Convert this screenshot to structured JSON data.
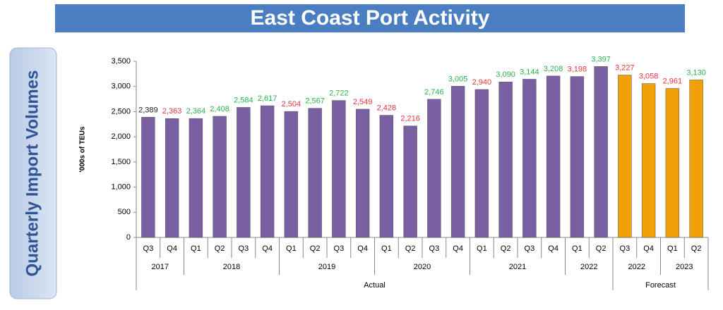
{
  "chart_data": {
    "type": "bar",
    "title": "East Coast Port Activity",
    "side_label": "Quarterly Import Volumes",
    "y_label": "'000s of TEUs",
    "categories": [
      "Q3",
      "Q4",
      "Q1",
      "Q2",
      "Q3",
      "Q4",
      "Q1",
      "Q2",
      "Q3",
      "Q4",
      "Q1",
      "Q2",
      "Q3",
      "Q4",
      "Q1",
      "Q2",
      "Q3",
      "Q4",
      "Q1",
      "Q2",
      "Q3",
      "Q4",
      "Q1",
      "Q2"
    ],
    "years": [
      "2017",
      "2017",
      "2018",
      "2018",
      "2018",
      "2018",
      "2019",
      "2019",
      "2019",
      "2019",
      "2020",
      "2020",
      "2020",
      "2020",
      "2021",
      "2021",
      "2021",
      "2021",
      "2022",
      "2022",
      "2022",
      "2022",
      "2023",
      "2023"
    ],
    "periods": [
      "Actual",
      "Actual",
      "Actual",
      "Actual",
      "Actual",
      "Actual",
      "Actual",
      "Actual",
      "Actual",
      "Actual",
      "Actual",
      "Actual",
      "Actual",
      "Actual",
      "Actual",
      "Actual",
      "Actual",
      "Actual",
      "Actual",
      "Actual",
      "Forecast",
      "Forecast",
      "Forecast",
      "Forecast"
    ],
    "values": [
      2389,
      2363,
      2364,
      2408,
      2584,
      2617,
      2504,
      2567,
      2722,
      2549,
      2428,
      2216,
      2746,
      3005,
      2940,
      3090,
      3144,
      3208,
      3198,
      3397,
      3227,
      3058,
      2961,
      3130
    ],
    "value_labels": [
      "2,389",
      "2,363",
      "2,364",
      "2,408",
      "2,584",
      "2,617",
      "2,504",
      "2,567",
      "2,722",
      "2,549",
      "2,428",
      "2,216",
      "2,746",
      "3,005",
      "2,940",
      "3,090",
      "3,144",
      "3,208",
      "3,198",
      "3,397",
      "3,227",
      "3,058",
      "2,961",
      "3,130"
    ],
    "colors": [
      "#7b5fa3",
      "#7b5fa3",
      "#7b5fa3",
      "#7b5fa3",
      "#7b5fa3",
      "#7b5fa3",
      "#7b5fa3",
      "#7b5fa3",
      "#7b5fa3",
      "#7b5fa3",
      "#7b5fa3",
      "#7b5fa3",
      "#7b5fa3",
      "#7b5fa3",
      "#7b5fa3",
      "#7b5fa3",
      "#7b5fa3",
      "#7b5fa3",
      "#7b5fa3",
      "#7b5fa3",
      "#f2a007",
      "#f2a007",
      "#f2a007",
      "#f2a007"
    ],
    "value_label_colors": [
      "#222222",
      "#e8333a",
      "#2bb24c",
      "#2bb24c",
      "#2bb24c",
      "#2bb24c",
      "#e8333a",
      "#2bb24c",
      "#2bb24c",
      "#e8333a",
      "#e8333a",
      "#e8333a",
      "#2bb24c",
      "#2bb24c",
      "#e8333a",
      "#2bb24c",
      "#2bb24c",
      "#2bb24c",
      "#e8333a",
      "#2bb24c",
      "#e8333a",
      "#e8333a",
      "#e8333a",
      "#2bb24c"
    ],
    "ylim": [
      0,
      3500
    ],
    "yticks": [
      0,
      500,
      {
        "value": 1000,
        "label": "1,000"
      },
      {
        "value": 1500,
        "label": "1,500"
      },
      {
        "value": 2000,
        "label": "2,000"
      },
      {
        "value": 2500,
        "label": "2,500"
      },
      {
        "value": 3000,
        "label": "3,000"
      },
      {
        "value": 3500,
        "label": "3,500"
      }
    ],
    "grid": false
  }
}
